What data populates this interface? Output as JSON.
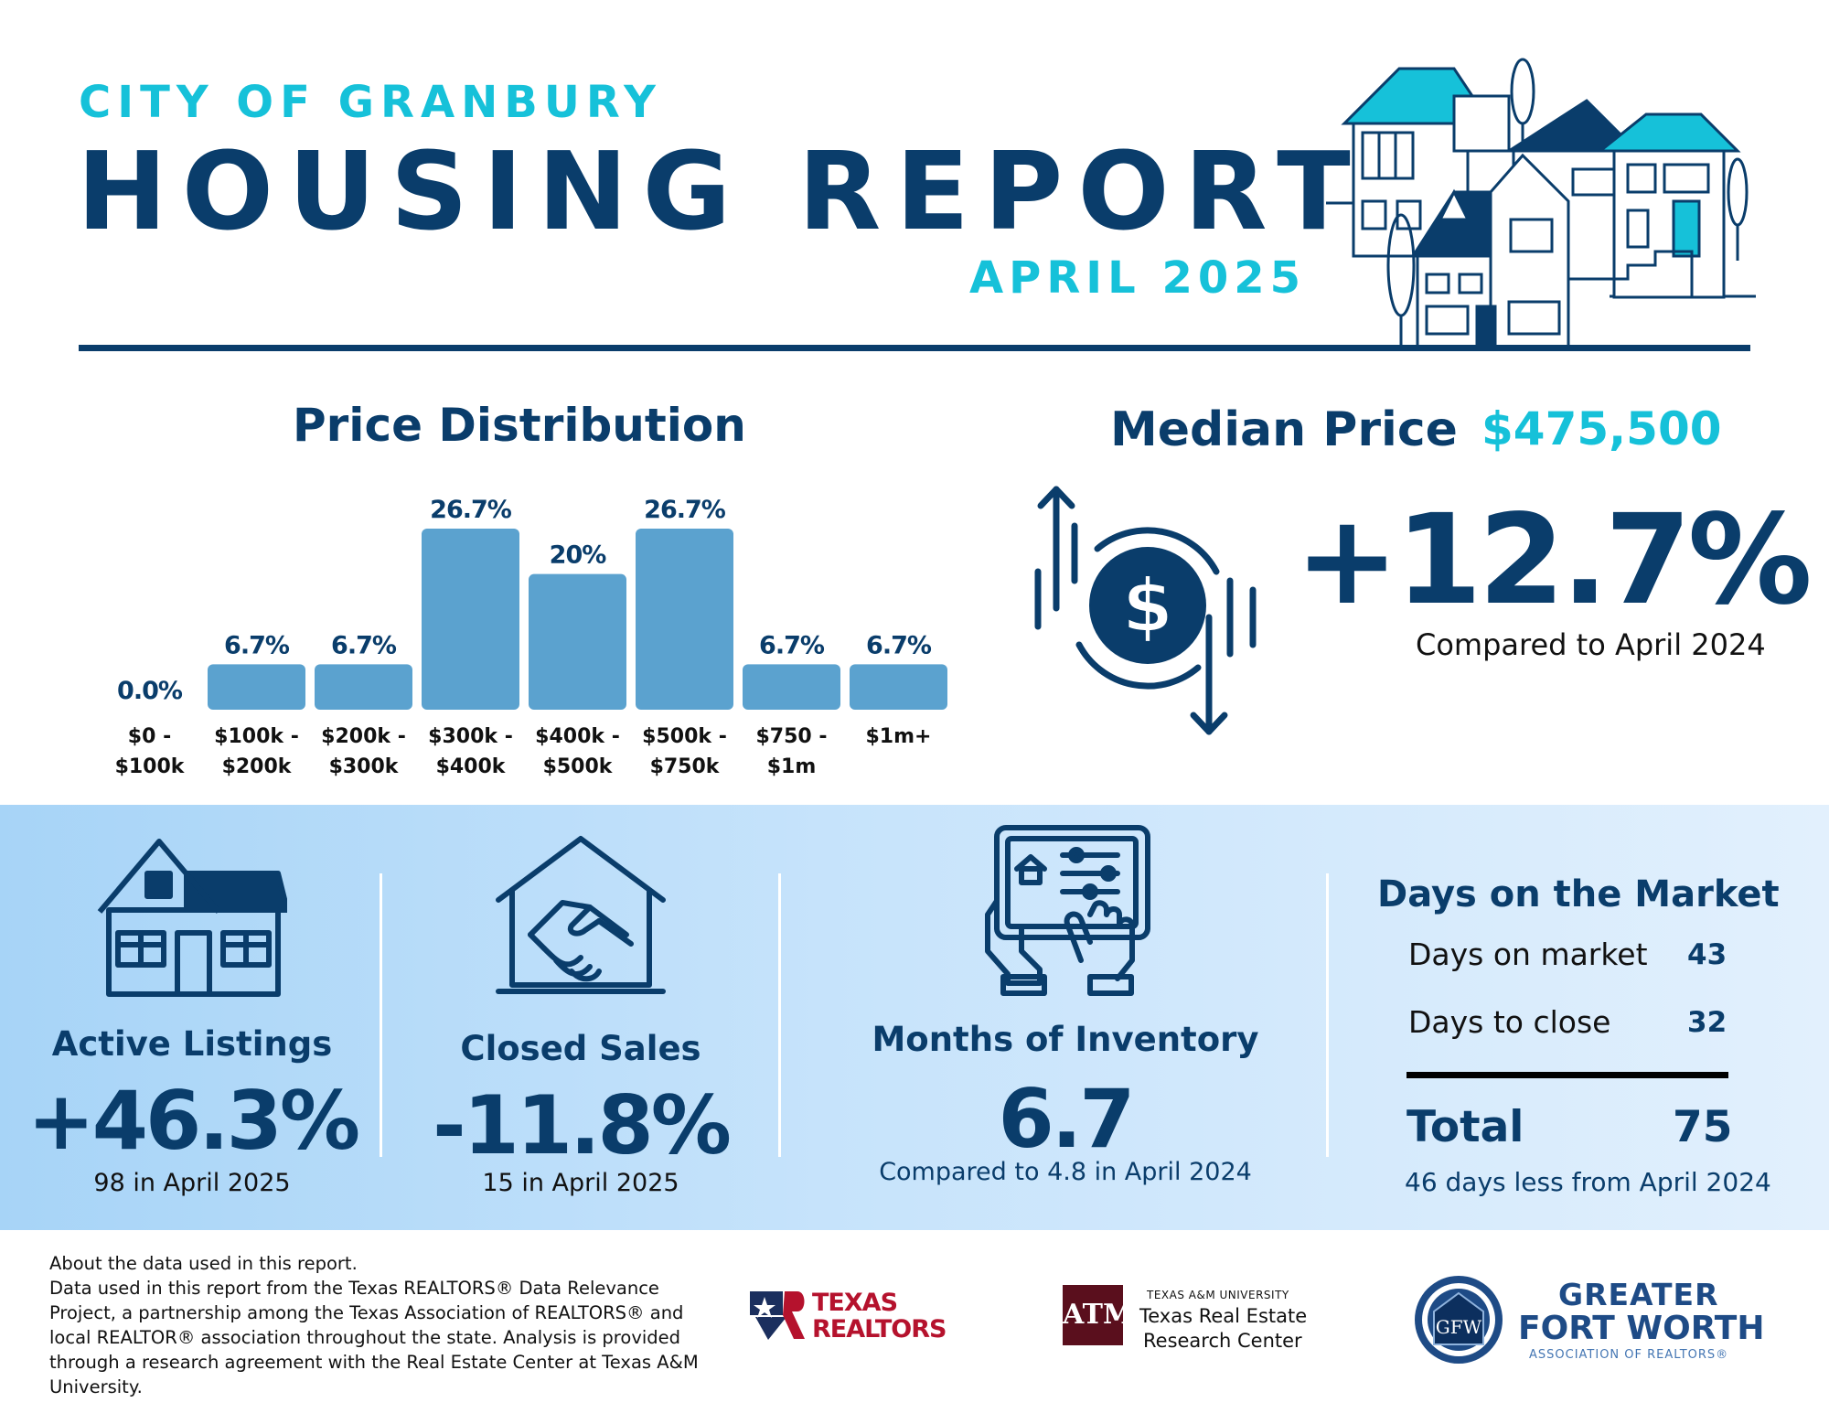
{
  "header": {
    "kicker": "CITY OF GRANBURY",
    "title": "HOUSING REPORT",
    "date": "APRIL 2025"
  },
  "price_distribution": {
    "title": "Price Distribution"
  },
  "chart_data": {
    "type": "bar",
    "title": "Price Distribution",
    "categories": [
      [
        "$0 -",
        "$100k"
      ],
      [
        "$100k -",
        "$200k"
      ],
      [
        "$200k -",
        "$300k"
      ],
      [
        "$300k -",
        "$400k"
      ],
      [
        "$400k -",
        "$500k"
      ],
      [
        "$500k -",
        "$750k"
      ],
      [
        "$750 -",
        "$1m"
      ],
      [
        "$1m+",
        ""
      ]
    ],
    "values": [
      0.0,
      6.7,
      6.7,
      26.7,
      20,
      26.7,
      6.7,
      6.7
    ],
    "value_labels": [
      "0.0%",
      "6.7%",
      "6.7%",
      "26.7%",
      "20%",
      "26.7%",
      "6.7%",
      "6.7%"
    ],
    "ylim": [
      0,
      26.7
    ],
    "grid": false,
    "bar_color": "#5ba2cf"
  },
  "median_price": {
    "label": "Median Price",
    "value": "$475,500",
    "change": "+12.7%",
    "note": "Compared to April 2024",
    "icon": "dollar-cycle-icon"
  },
  "stats": {
    "active_listings": {
      "label": "Active Listings",
      "value": "+46.3%",
      "note": "98 in April 2025",
      "icon": "house-icon"
    },
    "closed_sales": {
      "label": "Closed Sales",
      "value": "-11.8%",
      "note": "15 in April 2025",
      "icon": "handshake-house-icon"
    },
    "months_inventory": {
      "label": "Months of Inventory",
      "value": "6.7",
      "note": "Compared to 4.8 in April 2024",
      "icon": "tablet-hands-icon"
    }
  },
  "days_on_market": {
    "title": "Days on the Market",
    "rows": [
      {
        "label": "Days on market",
        "value": "43"
      },
      {
        "label": "Days to close",
        "value": "32"
      }
    ],
    "total_label": "Total",
    "total_value": "75",
    "note": "46 days less from April 2024"
  },
  "footer": {
    "about_heading": "About the data used in this report.",
    "about_body": "Data used in this report from the Texas REALTORS® Data Relevance Project, a partnership among the Texas Association of REALTORS® and local REALTOR® association throughout the state. Analysis is provided through a research agreement with the Real Estate Center at Texas A&M University.",
    "texas_realtors": [
      "TEXAS",
      "REALTORS"
    ],
    "tamu_small": "TEXAS A&M UNIVERSITY",
    "tamu_line1": "Texas Real Estate",
    "tamu_line2": "Research Center",
    "gfw_line1": "GREATER",
    "gfw_line2": "FORT WORTH",
    "gfw_line3": "ASSOCIATION OF REALTORS®"
  },
  "colors": {
    "navy": "#0a3d6b",
    "cyan": "#16c1d9",
    "bar": "#5ba2cf",
    "band": "#c6e3fb"
  }
}
